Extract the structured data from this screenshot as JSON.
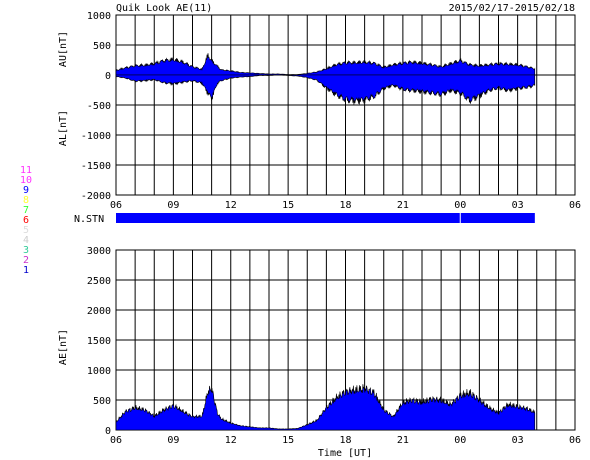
{
  "header": {
    "title": "Quik Look AE(11)",
    "date_range": "2015/02/17-2015/02/18"
  },
  "station_legend": [
    {
      "label": "11",
      "color": "#ff33ff"
    },
    {
      "label": "10",
      "color": "#ff33ff"
    },
    {
      "label": "9",
      "color": "#0000ff"
    },
    {
      "label": "8",
      "color": "#ffff33"
    },
    {
      "label": "7",
      "color": "#33ff33"
    },
    {
      "label": "6",
      "color": "#ff0000"
    },
    {
      "label": "5",
      "color": "#dddddd"
    },
    {
      "label": "4",
      "color": "#cccccc"
    },
    {
      "label": "3",
      "color": "#33cc99"
    },
    {
      "label": "2",
      "color": "#cc33cc"
    },
    {
      "label": "1",
      "color": "#0000cc"
    }
  ],
  "nstn_label": "N.STN",
  "x_ticks": [
    "06",
    "09",
    "12",
    "15",
    "18",
    "21",
    "00",
    "03",
    "06"
  ],
  "xlabel": "Time [UT]",
  "chart_data": [
    {
      "type": "area",
      "title": "Quik Look AE(11)",
      "ylabel_upper": "AU[nT]",
      "ylabel_lower": "AL[nT]",
      "ylim": [
        -2000,
        1000
      ],
      "y_ticks": [
        "1000",
        "500",
        "0",
        "-500",
        "-1000",
        "-1500",
        "-2000"
      ],
      "x_hours": [
        6,
        6.5,
        7,
        7.5,
        8,
        8.5,
        9,
        9.5,
        10,
        10.5,
        10.8,
        11,
        11.3,
        11.5,
        12,
        12.5,
        13,
        13.5,
        14,
        14.5,
        15,
        15.5,
        16,
        16.5,
        17,
        17.5,
        18,
        18.5,
        19,
        19.5,
        20,
        20.5,
        21,
        21.5,
        22,
        22.5,
        23,
        23.5,
        24,
        24.5,
        25,
        25.5,
        26,
        26.5,
        27,
        27.5,
        27.9
      ],
      "series": [
        {
          "name": "AU",
          "values": [
            90,
            140,
            180,
            190,
            220,
            280,
            300,
            250,
            160,
            110,
            380,
            280,
            170,
            100,
            80,
            50,
            40,
            30,
            20,
            20,
            10,
            10,
            30,
            60,
            120,
            200,
            240,
            240,
            250,
            230,
            150,
            200,
            230,
            250,
            230,
            200,
            160,
            220,
            280,
            200,
            180,
            200,
            220,
            210,
            200,
            160,
            120
          ]
        },
        {
          "name": "AL",
          "values": [
            -30,
            -60,
            -120,
            -110,
            -90,
            -150,
            -170,
            -140,
            -110,
            -160,
            -350,
            -450,
            -160,
            -110,
            -60,
            -40,
            -30,
            -10,
            -10,
            0,
            -10,
            -20,
            -50,
            -100,
            -250,
            -380,
            -480,
            -500,
            -480,
            -420,
            -260,
            -200,
            -280,
            -300,
            -320,
            -350,
            -380,
            -300,
            -350,
            -500,
            -400,
            -300,
            -250,
            -300,
            -260,
            -240,
            -200
          ]
        }
      ]
    },
    {
      "type": "area",
      "ylabel": "AE[nT]",
      "ylim": [
        0,
        3000
      ],
      "y_ticks": [
        "3000",
        "2500",
        "2000",
        "1500",
        "1000",
        "500",
        "0"
      ],
      "x_hours": [
        6,
        6.5,
        7,
        7.5,
        8,
        8.5,
        9,
        9.5,
        10,
        10.5,
        10.8,
        11,
        11.3,
        11.5,
        12,
        12.5,
        13,
        13.5,
        14,
        14.5,
        15,
        15.5,
        16,
        16.5,
        17,
        17.5,
        18,
        18.5,
        19,
        19.5,
        20,
        20.5,
        21,
        21.5,
        22,
        22.5,
        23,
        23.5,
        24,
        24.5,
        25,
        25.5,
        26,
        26.5,
        27,
        27.5,
        27.9
      ],
      "series": [
        {
          "name": "AE",
          "values": [
            150,
            350,
            420,
            380,
            260,
            380,
            460,
            350,
            250,
            260,
            720,
            780,
            320,
            210,
            130,
            80,
            60,
            40,
            40,
            20,
            20,
            30,
            100,
            180,
            420,
            600,
            720,
            750,
            780,
            700,
            380,
            250,
            520,
            560,
            520,
            580,
            560,
            480,
            650,
            700,
            560,
            420,
            320,
            480,
            440,
            400,
            330
          ]
        }
      ]
    }
  ]
}
